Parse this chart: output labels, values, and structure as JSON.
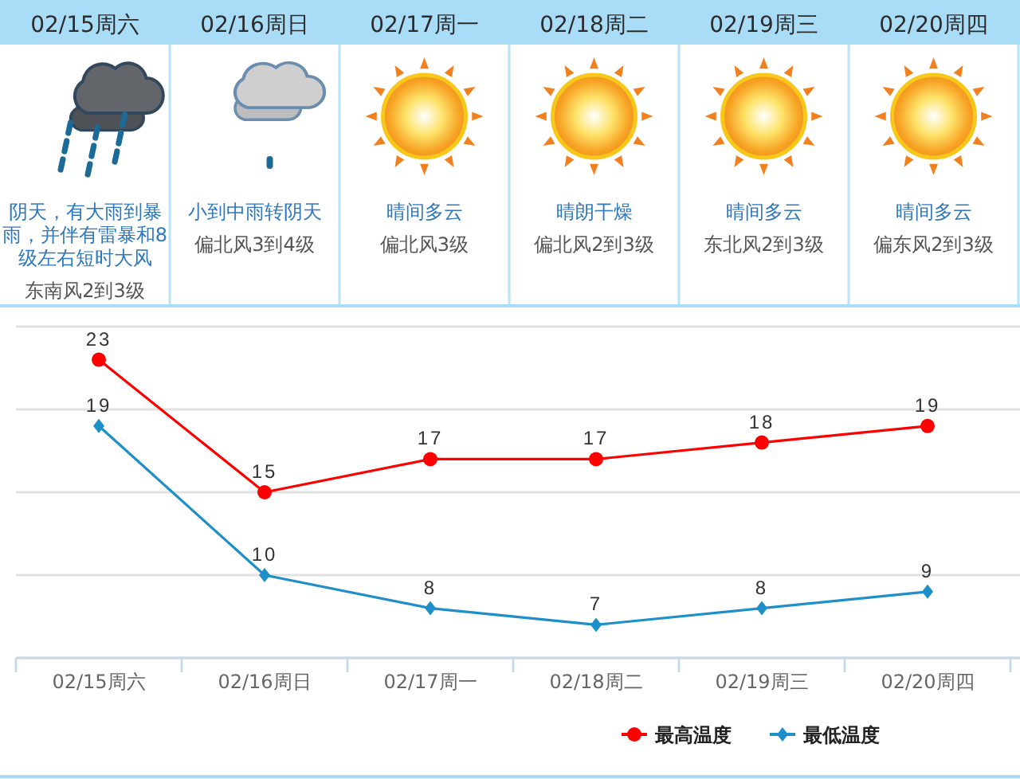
{
  "chart_data": [
    {
      "type": "other",
      "categories": [
        "02/15周六",
        "02/16周日",
        "02/17周一",
        "02/18周二",
        "02/19周三",
        "02/20周四"
      ],
      "annotations": [
        {
          "text": "阴天，有大雨到暴雨，并伴有雷暴和8级左右短时大风",
          "x": "02/15周六"
        },
        {
          "text": "东南风2到3级",
          "x": "02/15周六"
        },
        {
          "text": "小到中雨转阴天",
          "x": "02/16周日"
        },
        {
          "text": "偏北风3到4级",
          "x": "02/16周日"
        },
        {
          "text": "晴间多云",
          "x": "02/17周一"
        },
        {
          "text": "偏北风3级",
          "x": "02/17周一"
        },
        {
          "text": "晴朗干燥",
          "x": "02/18周二"
        },
        {
          "text": "偏北风2到3级",
          "x": "02/18周二"
        },
        {
          "text": "晴间多云",
          "x": "02/19周三"
        },
        {
          "text": "东北风2到3级",
          "x": "02/19周三"
        },
        {
          "text": "晴间多云",
          "x": "02/20周四"
        },
        {
          "text": "偏东风2到3级",
          "x": "02/20周四"
        }
      ]
    },
    {
      "type": "line",
      "categories": [
        "02/15周六",
        "02/16周日",
        "02/17周一",
        "02/18周二",
        "02/19周三",
        "02/20周四"
      ],
      "series": [
        {
          "name": "最高温度",
          "color": "#ff0000",
          "marker": "circle",
          "values": [
            23,
            15,
            17,
            17,
            18,
            19
          ]
        },
        {
          "name": "最低温度",
          "color": "#1e8fc8",
          "marker": "diamond",
          "values": [
            19,
            10,
            8,
            7,
            8,
            9
          ]
        }
      ],
      "ylim": [
        5,
        25
      ],
      "yticks": [
        {
          "value": 5,
          "label": null
        },
        {
          "value": 10,
          "label": null
        },
        {
          "value": 15,
          "label": null
        },
        {
          "value": 20,
          "label": null
        },
        {
          "value": 25,
          "label": null
        }
      ],
      "grid": "y",
      "tick_labels": "x",
      "data_labels": true,
      "legend": "bottom right"
    }
  ]
}
